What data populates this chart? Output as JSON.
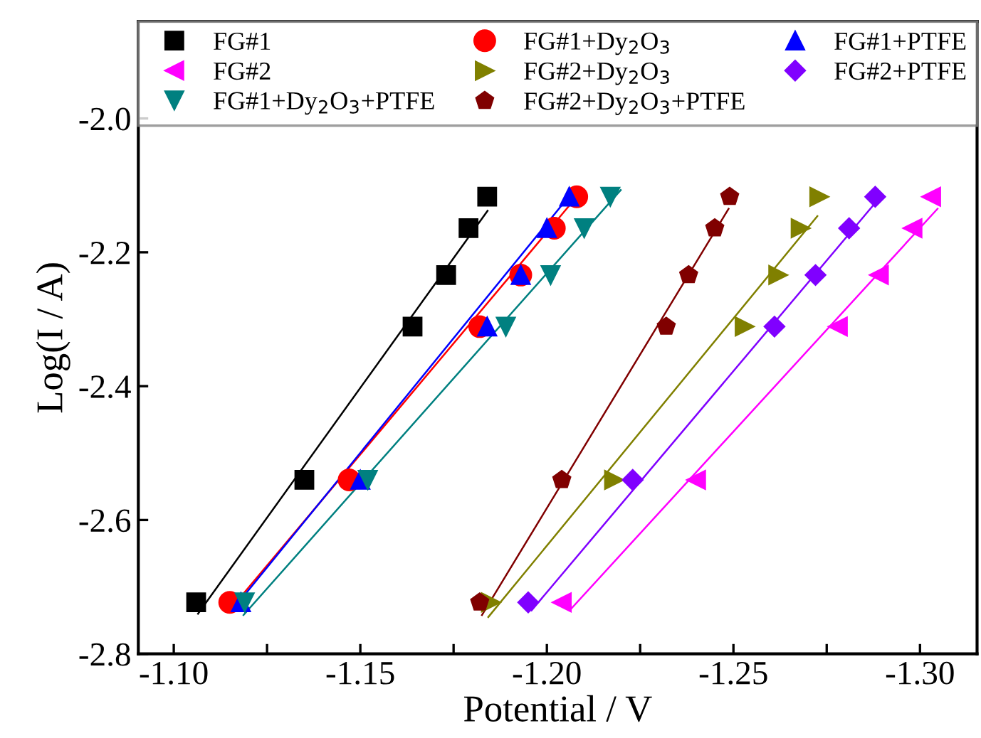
{
  "chart_data": {
    "type": "scatter",
    "xlabel": "Potential / V",
    "ylabel": "Log(I / A)",
    "xlim": [
      -1.0905,
      -1.3153
    ],
    "ylim": [
      -2.8,
      -1.855
    ],
    "xticks": [
      {
        "value": -1.1,
        "label": "-1.10"
      },
      {
        "value": -1.125,
        "label": null
      },
      {
        "value": -1.15,
        "label": "-1.15"
      },
      {
        "value": -1.175,
        "label": null
      },
      {
        "value": -1.2,
        "label": "-1.20"
      },
      {
        "value": -1.225,
        "label": null
      },
      {
        "value": -1.25,
        "label": "-1.25"
      },
      {
        "value": -1.275,
        "label": null
      },
      {
        "value": -1.3,
        "label": "-1.30"
      }
    ],
    "yticks": [
      {
        "value": -2.8,
        "label": "-2.8"
      },
      {
        "value": -2.6,
        "label": "-2.6"
      },
      {
        "value": -2.4,
        "label": "-2.4"
      },
      {
        "value": -2.2,
        "label": "-2.2"
      },
      {
        "value": -2.0,
        "label": "-2.0"
      }
    ],
    "legend": "top",
    "grid": false,
    "series": [
      {
        "name": "FG#1",
        "color": "#000000",
        "marker": "square",
        "x": [
          -1.106,
          -1.135,
          -1.164,
          -1.173,
          -1.179,
          -1.184
        ],
        "values": [
          -2.723,
          -2.54,
          -2.311,
          -2.234,
          -2.164,
          -2.117
        ]
      },
      {
        "name": "FG#1+Dy$_{2}$O$_{3}$",
        "color": "#ff0000",
        "marker": "circle",
        "x": [
          -1.115,
          -1.147,
          -1.182,
          -1.193,
          -1.202,
          -1.208
        ],
        "values": [
          -2.723,
          -2.54,
          -2.311,
          -2.234,
          -2.164,
          -2.117
        ]
      },
      {
        "name": "FG#1+PTFE",
        "color": "#0000ff",
        "marker": "triangle",
        "x": [
          -1.118,
          -1.15,
          -1.184,
          -1.193,
          -1.2,
          -1.206
        ],
        "values": [
          -2.723,
          -2.54,
          -2.311,
          -2.234,
          -2.164,
          -2.117
        ]
      },
      {
        "name": "FG#2",
        "color": "#ff00ff",
        "marker": "triangle_left",
        "x": [
          -1.204,
          -1.24,
          -1.278,
          -1.289,
          -1.298,
          -1.303
        ],
        "values": [
          -2.723,
          -2.54,
          -2.311,
          -2.234,
          -2.164,
          -2.117
        ]
      },
      {
        "name": "FG#2+Dy$_{2}$O$_{3}$",
        "color": "#808000",
        "marker": "triangle_right",
        "x": [
          -1.185,
          -1.218,
          -1.253,
          -1.262,
          -1.268,
          -1.273
        ],
        "values": [
          -2.723,
          -2.54,
          -2.311,
          -2.234,
          -2.164,
          -2.117
        ]
      },
      {
        "name": "FG#2+PTFE",
        "color": "#8000ff",
        "marker": "diamond",
        "x": [
          -1.195,
          -1.223,
          -1.261,
          -1.272,
          -1.281,
          -1.288
        ],
        "values": [
          -2.723,
          -2.54,
          -2.311,
          -2.234,
          -2.164,
          -2.117
        ]
      },
      {
        "name": "FG#1+Dy$_{2}$O$_{3}$+PTFE",
        "color": "#008080",
        "marker": "triangle_down",
        "x": [
          -1.119,
          -1.152,
          -1.189,
          -1.201,
          -1.21,
          -1.217
        ],
        "values": [
          -2.723,
          -2.54,
          -2.311,
          -2.234,
          -2.164,
          -2.117
        ]
      },
      {
        "name": "FG#2+Dy$_{2}$O$_{3}$+PTFE",
        "color": "#800000",
        "x": [
          -1.182,
          -1.204,
          -1.232,
          -1.238,
          -1.245,
          -1.249
        ],
        "values": [
          -2.723,
          -2.54,
          -2.311,
          -2.234,
          -2.164,
          -2.117
        ]
      },
      {
        "type": "line",
        "color": "#000000",
        "x": [
          -1.1065,
          -1.1841
        ],
        "values": [
          -2.74,
          -2.138
        ]
      },
      {
        "type": "line",
        "color": "#ff0000",
        "x": [
          -1.1149,
          -1.2074
        ],
        "values": [
          -2.735,
          -2.121
        ]
      },
      {
        "type": "line",
        "color": "#0000ff",
        "x": [
          -1.1152,
          -1.2057
        ],
        "values": [
          -2.738,
          -2.118
        ]
      },
      {
        "type": "line",
        "color": "#ff00ff",
        "x": [
          -1.2061,
          -1.3047
        ],
        "values": [
          -2.735,
          -2.135
        ]
      },
      {
        "type": "line",
        "color": "#808000",
        "x": [
          -1.1843,
          -1.2725
        ],
        "values": [
          -2.745,
          -2.146
        ]
      },
      {
        "type": "line",
        "color": "#8000ff",
        "x": [
          -1.1959,
          -1.2882
        ],
        "values": [
          -2.735,
          -2.125
        ]
      },
      {
        "type": "line",
        "color": "#008080",
        "x": [
          -1.1187,
          -1.2198
        ],
        "values": [
          -2.742,
          -2.107
        ]
      },
      {
        "type": "line",
        "color": "#800000",
        "x": [
          -1.1826,
          -1.2487
        ],
        "values": [
          -2.742,
          -2.135
        ]
      }
    ]
  }
}
